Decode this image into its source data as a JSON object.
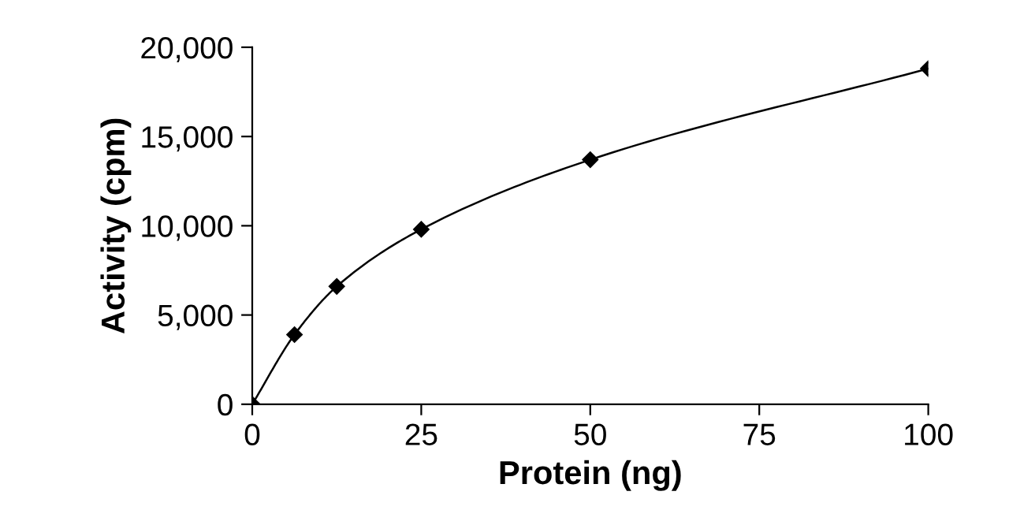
{
  "chart_data": {
    "type": "line",
    "xlabel": "Protein (ng)",
    "ylabel": "Activity (cpm)",
    "x": [
      0,
      6.25,
      12.5,
      25,
      50,
      100
    ],
    "series": [
      {
        "color": "#000000",
        "values": [
          0,
          3900,
          6600,
          9800,
          13700,
          18800
        ]
      }
    ],
    "xlim": [
      0,
      100
    ],
    "ylim": [
      0,
      20000
    ],
    "xticks": [
      0,
      25,
      50,
      75,
      100
    ],
    "yticks": [
      {
        "value": 0,
        "label": "0"
      },
      {
        "value": 5000,
        "label": "5,000"
      },
      {
        "value": 10000,
        "label": "10,000"
      },
      {
        "value": 15000,
        "label": "15,000"
      },
      {
        "value": 20000,
        "label": "20,000"
      }
    ],
    "marker": "diamond",
    "line_style": "solid",
    "grid": false,
    "legend": false
  }
}
